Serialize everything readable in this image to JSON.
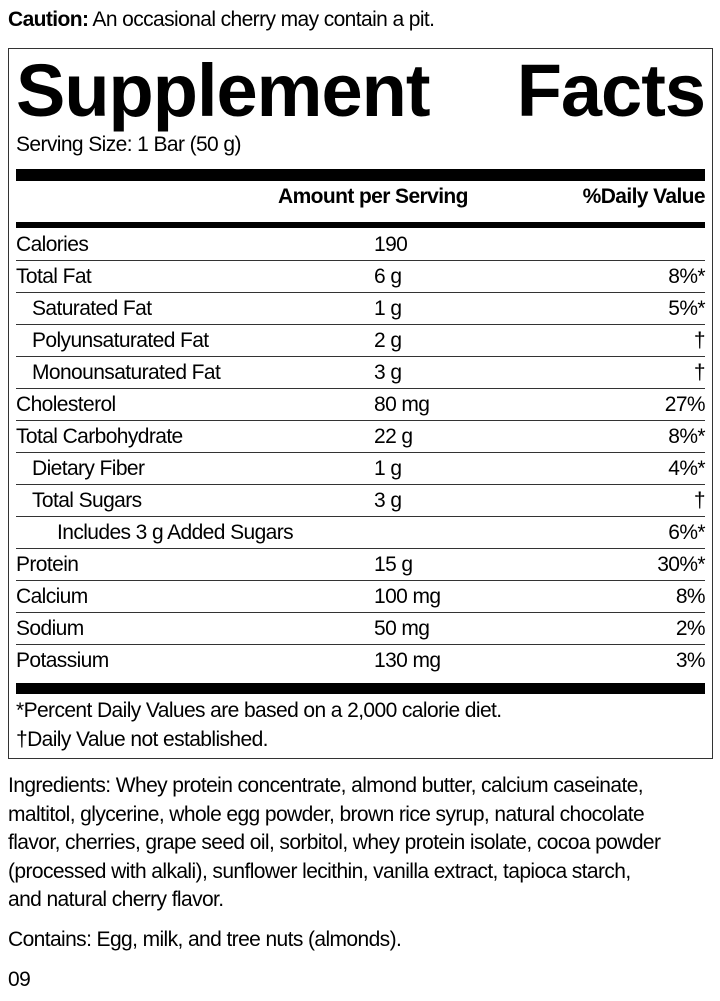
{
  "caution": {
    "label": "Caution:",
    "text": " An occasional cherry may contain a pit."
  },
  "title": {
    "word1": "Supplement",
    "word2": "Facts"
  },
  "serving_size": "Serving Size: 1 Bar (50 g)",
  "header": {
    "amount": "Amount per Serving",
    "daily_value": "%Daily Value"
  },
  "rows": [
    {
      "name": "Calories",
      "amount": "190",
      "dv": "",
      "indent": 0
    },
    {
      "name": "Total Fat",
      "amount": "6 g",
      "dv": "8%*",
      "indent": 0
    },
    {
      "name": "Saturated Fat",
      "amount": "1 g",
      "dv": "5%*",
      "indent": 1
    },
    {
      "name": "Polyunsaturated Fat",
      "amount": "2 g",
      "dv": "†",
      "indent": 1
    },
    {
      "name": "Monounsaturated Fat",
      "amount": "3 g",
      "dv": "†",
      "indent": 1
    },
    {
      "name": "Cholesterol",
      "amount": "80 mg",
      "dv": "27%",
      "indent": 0
    },
    {
      "name": "Total Carbohydrate",
      "amount": "22 g",
      "dv": "8%*",
      "indent": 0
    },
    {
      "name": "Dietary Fiber",
      "amount": "1 g",
      "dv": "4%*",
      "indent": 1
    },
    {
      "name": "Total Sugars",
      "amount": "3 g",
      "dv": "†",
      "indent": 1
    },
    {
      "name": "Includes 3 g Added Sugars",
      "amount": "",
      "dv": "6%*",
      "indent": 2
    },
    {
      "name": "Protein",
      "amount": "15 g",
      "dv": "30%*",
      "indent": 0
    },
    {
      "name": "Calcium",
      "amount": "100 mg",
      "dv": "8%",
      "indent": 0
    },
    {
      "name": "Sodium",
      "amount": "50 mg",
      "dv": "2%",
      "indent": 0
    },
    {
      "name": "Potassium",
      "amount": "130 mg",
      "dv": "3%",
      "indent": 0
    }
  ],
  "footnotes": [
    "*Percent Daily Values are based on a 2,000 calorie diet.",
    "†Daily Value not established."
  ],
  "ingredients": [
    "Ingredients: Whey protein concentrate, almond butter, calcium caseinate,",
    "maltitol, glycerine, whole egg powder, brown rice syrup, natural chocolate",
    "flavor, cherries, grape seed oil, sorbitol, whey protein isolate, cocoa powder",
    "(processed with alkali), sunflower lecithin, vanilla extract, tapioca starch,",
    "and natural cherry flavor."
  ],
  "contains": "Contains: Egg, milk, and tree nuts (almonds).",
  "code": "09"
}
